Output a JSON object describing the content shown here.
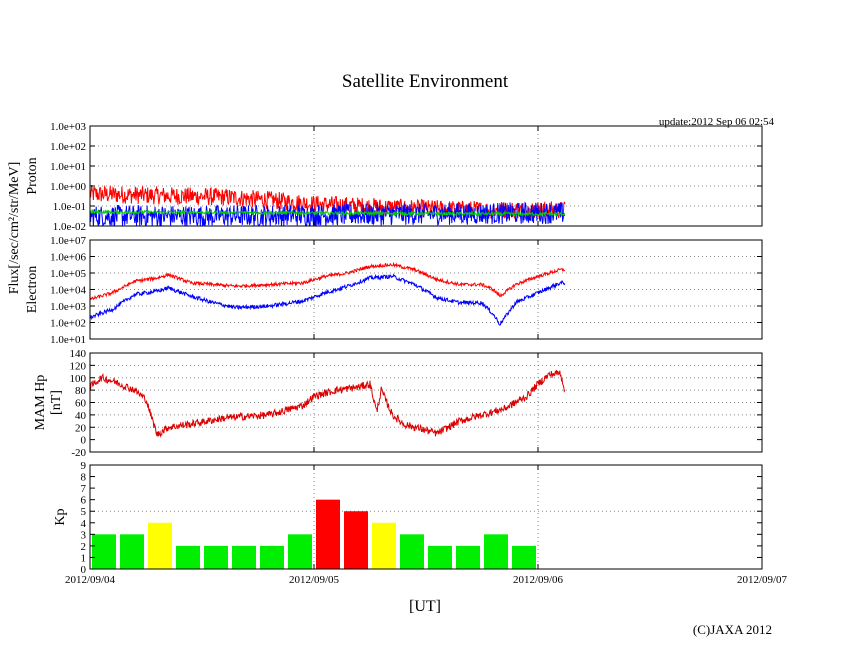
{
  "chart_data": {
    "title": "Satellite Environment",
    "update_text": "update:2012 Sep 06 02:54",
    "copyright": "(C)JAXA 2012",
    "xlabel": "[UT]",
    "flux_label": "Flux[/sec/cm²/str/MeV]",
    "x_ticks": [
      "2012/09/04",
      "2012/09/05",
      "2012/09/06",
      "2012/09/07"
    ],
    "x_range_days": [
      0,
      3
    ],
    "data_end_day": 2.12,
    "panels": [
      {
        "id": "proton",
        "type": "line",
        "ylabel": "Proton",
        "scale": "log",
        "ylim": [
          -2,
          3
        ],
        "tick_labels": [
          "1.0e-02",
          "1.0e-01",
          "1.0e+00",
          "1.0e+01",
          "1.0e+02",
          "1.0e+03"
        ],
        "grid_y": [
          -1,
          0,
          1,
          2
        ],
        "series": [
          {
            "name": "proton-high",
            "color": "#ff0000",
            "x": [
              0,
              0.2,
              0.4,
              0.6,
              0.8,
              1.0,
              1.2,
              1.4,
              1.6,
              1.8,
              2.0,
              2.12
            ],
            "y": [
              -0.4,
              -0.45,
              -0.5,
              -0.55,
              -0.7,
              -0.9,
              -1.0,
              -1.1,
              -1.15,
              -1.2,
              -1.2,
              -1.2
            ],
            "noise": 0.45
          },
          {
            "name": "proton-low",
            "color": "#0000ff",
            "x": [
              0,
              0.5,
              1.0,
              1.5,
              2.0,
              2.12
            ],
            "y": [
              -1.5,
              -1.5,
              -1.45,
              -1.4,
              -1.35,
              -1.35
            ],
            "noise": 0.55
          },
          {
            "name": "proton-mid",
            "color": "#00cc00",
            "x": [
              0,
              0.5,
              1.0,
              1.5,
              2.0,
              2.12
            ],
            "y": [
              -1.3,
              -1.32,
              -1.35,
              -1.38,
              -1.4,
              -1.4
            ],
            "noise": 0.08
          }
        ]
      },
      {
        "id": "electron",
        "type": "line",
        "ylabel": "Electron",
        "scale": "log",
        "ylim": [
          1,
          7
        ],
        "tick_labels": [
          "1.0e+01",
          "1.0e+02",
          "1.0e+03",
          "1.0e+04",
          "1.0e+05",
          "1.0e+06",
          "1.0e+07"
        ],
        "grid_y": [
          2,
          3,
          4,
          5,
          6
        ],
        "series": [
          {
            "name": "electron-high",
            "color": "#ff0000",
            "x": [
              0,
              0.1,
              0.2,
              0.3,
              0.35,
              0.45,
              0.55,
              0.65,
              0.8,
              0.95,
              1.05,
              1.15,
              1.25,
              1.35,
              1.45,
              1.55,
              1.65,
              1.75,
              1.8,
              1.83,
              1.9,
              2.0,
              2.1,
              2.12
            ],
            "y": [
              3.4,
              3.8,
              4.5,
              4.7,
              4.9,
              4.4,
              4.3,
              4.2,
              4.3,
              4.4,
              4.8,
              5.0,
              5.4,
              5.5,
              5.2,
              4.6,
              4.3,
              4.3,
              4.0,
              3.6,
              4.3,
              4.8,
              5.2,
              5.2
            ],
            "noise": 0.1
          },
          {
            "name": "electron-low",
            "color": "#0000ff",
            "x": [
              0,
              0.1,
              0.2,
              0.3,
              0.35,
              0.45,
              0.55,
              0.65,
              0.8,
              0.95,
              1.05,
              1.15,
              1.25,
              1.35,
              1.45,
              1.55,
              1.65,
              1.75,
              1.8,
              1.83,
              1.9,
              2.0,
              2.1,
              2.12
            ],
            "y": [
              2.3,
              2.8,
              3.7,
              3.9,
              4.1,
              3.6,
              3.2,
              2.9,
              3.0,
              3.3,
              3.8,
              4.2,
              4.7,
              4.8,
              4.3,
              3.5,
              3.2,
              3.2,
              2.5,
              1.9,
              3.2,
              3.8,
              4.4,
              4.4
            ],
            "noise": 0.12
          }
        ]
      },
      {
        "id": "hp",
        "type": "line",
        "ylabel": "MAM Hp",
        "ylabel2": "[nT]",
        "scale": "linear",
        "ylim": [
          -20,
          140
        ],
        "tick_labels": [
          "-20",
          "0",
          "20",
          "40",
          "60",
          "80",
          "100",
          "120",
          "140"
        ],
        "grid_y": [
          20,
          40,
          60,
          80,
          100,
          120
        ],
        "series": [
          {
            "name": "mam-hp",
            "color": "#dd0000",
            "x": [
              0,
              0.05,
              0.1,
              0.2,
              0.25,
              0.28,
              0.3,
              0.35,
              0.45,
              0.6,
              0.8,
              0.95,
              1.0,
              1.1,
              1.2,
              1.25,
              1.28,
              1.3,
              1.35,
              1.4,
              1.45,
              1.55,
              1.65,
              1.75,
              1.85,
              1.95,
              2.0,
              2.05,
              2.1,
              2.12
            ],
            "y": [
              85,
              100,
              95,
              80,
              65,
              30,
              8,
              20,
              25,
              35,
              40,
              55,
              70,
              80,
              85,
              90,
              45,
              80,
              40,
              25,
              20,
              10,
              30,
              40,
              50,
              70,
              90,
              105,
              108,
              80
            ],
            "noise": 6
          }
        ]
      },
      {
        "id": "kp",
        "type": "bar",
        "ylabel": "Kp",
        "scale": "linear",
        "ylim": [
          0,
          9
        ],
        "tick_labels": [
          "0",
          "1",
          "2",
          "3",
          "4",
          "5",
          "6",
          "7",
          "8",
          "9"
        ],
        "grid_y": [
          5
        ],
        "bar_width_days": 0.125,
        "values": [
          3,
          3,
          4,
          2,
          2,
          2,
          2,
          3,
          6,
          5,
          4,
          3,
          2,
          2,
          3,
          2
        ],
        "colors": {
          "low": "#00ee00",
          "mid": "#ffff00",
          "high": "#ff0000"
        }
      }
    ]
  }
}
